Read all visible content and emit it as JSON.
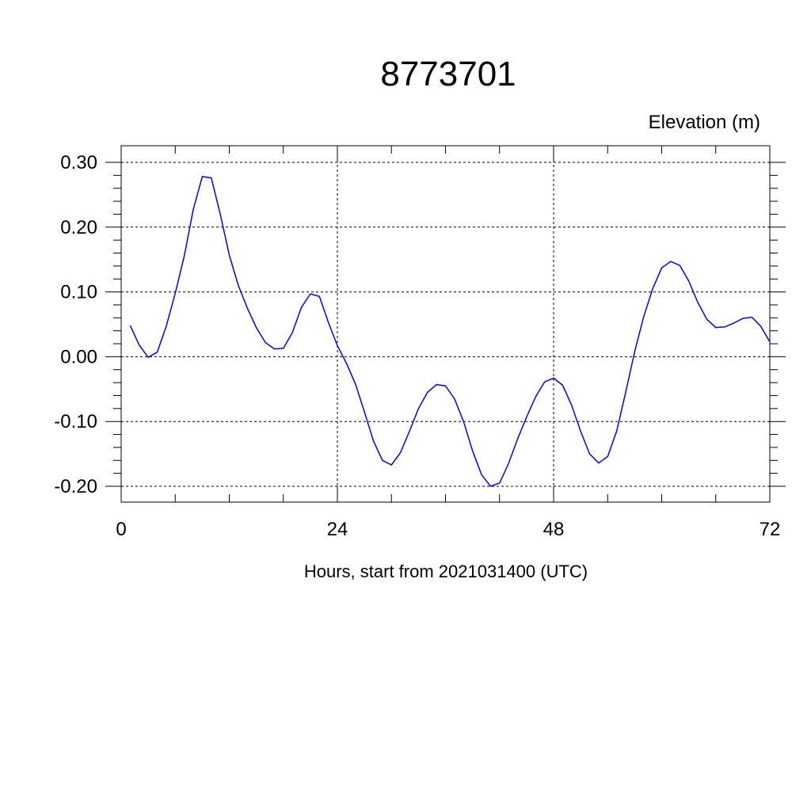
{
  "chart_data": {
    "type": "line",
    "title": "8773701",
    "ylabel": "Elevation (m)",
    "xlabel": "Hours, start from 2021031400 (UTC)",
    "xlim": [
      0,
      72
    ],
    "ylim": [
      -0.2,
      0.3
    ],
    "x_ticks": [
      0,
      24,
      48,
      72
    ],
    "x_tick_labels": [
      "0",
      "24",
      "48",
      "72"
    ],
    "y_ticks": [
      -0.2,
      -0.1,
      0.0,
      0.1,
      0.2,
      0.3
    ],
    "y_tick_labels": [
      "-0.20",
      "-0.10",
      "0.00",
      "0.10",
      "0.20",
      "0.30"
    ],
    "grid": true,
    "line_color": "#0000ff",
    "series": [
      {
        "x": [
          1,
          2,
          3,
          4,
          5,
          6,
          7,
          8,
          9,
          10,
          11,
          12,
          13,
          14,
          15,
          16,
          17,
          18,
          19,
          20,
          21,
          22,
          23,
          24,
          25,
          26,
          27,
          28,
          29,
          30,
          31,
          32,
          33,
          34,
          35,
          36,
          37,
          38,
          39,
          40,
          41,
          42,
          43,
          44,
          45,
          46,
          47,
          48,
          49,
          50,
          51,
          52,
          53,
          54,
          55,
          56,
          57,
          58,
          59,
          60,
          61,
          62,
          63,
          64,
          65,
          66,
          67,
          68,
          69,
          70,
          71,
          72
        ],
        "values": [
          0.048,
          0.018,
          -0.001,
          0.007,
          0.047,
          0.098,
          0.155,
          0.227,
          0.278,
          0.276,
          0.22,
          0.157,
          0.11,
          0.075,
          0.045,
          0.022,
          0.012,
          0.013,
          0.037,
          0.076,
          0.097,
          0.093,
          0.053,
          0.017,
          -0.01,
          -0.042,
          -0.085,
          -0.13,
          -0.16,
          -0.167,
          -0.148,
          -0.115,
          -0.08,
          -0.055,
          -0.043,
          -0.045,
          -0.065,
          -0.1,
          -0.145,
          -0.182,
          -0.2,
          -0.195,
          -0.165,
          -0.127,
          -0.093,
          -0.062,
          -0.039,
          -0.033,
          -0.044,
          -0.075,
          -0.115,
          -0.15,
          -0.164,
          -0.154,
          -0.115,
          -0.055,
          0.008,
          0.062,
          0.105,
          0.137,
          0.147,
          0.141,
          0.117,
          0.084,
          0.058,
          0.045,
          0.046,
          0.052,
          0.059,
          0.061,
          0.047,
          0.023
        ]
      }
    ]
  }
}
